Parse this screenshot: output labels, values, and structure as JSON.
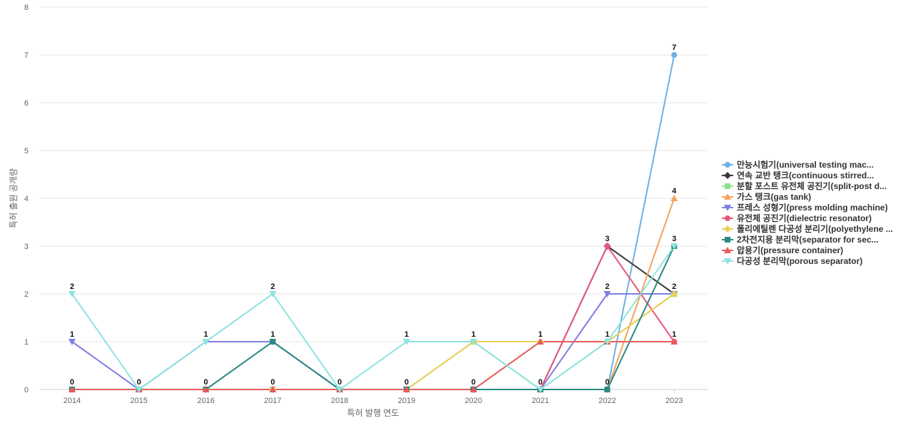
{
  "chart_data": {
    "type": "line",
    "xlabel": "특허 발행 연도",
    "ylabel": "특허 출원 공개량",
    "ylim": [
      0,
      8
    ],
    "yticks": [
      0,
      1,
      2,
      3,
      4,
      5,
      6,
      7,
      8
    ],
    "categories": [
      "2014",
      "2015",
      "2016",
      "2017",
      "2018",
      "2019",
      "2020",
      "2021",
      "2022",
      "2023"
    ],
    "grid": true,
    "legend_position": "right",
    "series": [
      {
        "name": "만능시험기(universal testing mac...",
        "color": "#6fb0e4",
        "marker": "circle",
        "values": [
          0,
          0,
          0,
          0,
          0,
          0,
          0,
          0,
          0,
          7
        ]
      },
      {
        "name": "연속 교반 탱크(continuous stirred...",
        "color": "#3a3a3a",
        "marker": "diamond",
        "values": [
          0,
          0,
          0,
          0,
          0,
          0,
          0,
          0,
          3,
          2
        ]
      },
      {
        "name": "분할 포스트 유전체 공진기(split-post d...",
        "color": "#8fe08a",
        "marker": "square",
        "values": [
          0,
          0,
          0,
          0,
          0,
          0,
          1,
          0,
          1,
          2
        ]
      },
      {
        "name": "가스 탱크(gas tank)",
        "color": "#f4a25e",
        "marker": "triangle-up",
        "values": [
          0,
          0,
          0,
          0,
          0,
          0,
          0,
          0,
          0,
          4
        ]
      },
      {
        "name": "프레스 성형기(press molding machine)",
        "color": "#7f7fe0",
        "marker": "triangle-down",
        "values": [
          1,
          0,
          1,
          1,
          0,
          0,
          0,
          0,
          2,
          2
        ]
      },
      {
        "name": "유전체 공진기(dielectric resonator)",
        "color": "#e8577a",
        "marker": "circle",
        "values": [
          0,
          0,
          0,
          0,
          0,
          0,
          0,
          0,
          3,
          1
        ]
      },
      {
        "name": "폴리에틸렌 다공성 분리기(polyethylene ...",
        "color": "#ead05a",
        "marker": "diamond",
        "values": [
          0,
          0,
          0,
          0,
          0,
          0,
          1,
          1,
          1,
          2
        ]
      },
      {
        "name": "2차전지용 분리막(separator for sec...",
        "color": "#2a8a82",
        "marker": "square",
        "values": [
          0,
          0,
          0,
          1,
          0,
          0,
          0,
          0,
          0,
          3
        ]
      },
      {
        "name": "압용기(pressure container)",
        "color": "#e85c5c",
        "marker": "triangle-up",
        "values": [
          0,
          0,
          0,
          0,
          0,
          0,
          0,
          1,
          1,
          1
        ]
      },
      {
        "name": "다공성 분리막(porous separator)",
        "color": "#8ee4e0",
        "marker": "triangle-down",
        "values": [
          2,
          0,
          1,
          2,
          0,
          1,
          1,
          0,
          1,
          3
        ]
      }
    ],
    "data_labels": [
      {
        "category": "2014",
        "series_index": 9,
        "text": "2"
      },
      {
        "category": "2014",
        "series_index": 4,
        "text": "1"
      },
      {
        "category": "2014",
        "series_index": 0,
        "text": "0"
      },
      {
        "category": "2015",
        "series_index": 0,
        "text": "0"
      },
      {
        "category": "2016",
        "series_index": 9,
        "text": "1"
      },
      {
        "category": "2016",
        "series_index": 0,
        "text": "0"
      },
      {
        "category": "2017",
        "series_index": 9,
        "text": "2"
      },
      {
        "category": "2017",
        "series_index": 7,
        "text": "1"
      },
      {
        "category": "2017",
        "series_index": 0,
        "text": "0"
      },
      {
        "category": "2018",
        "series_index": 0,
        "text": "0"
      },
      {
        "category": "2019",
        "series_index": 9,
        "text": "1"
      },
      {
        "category": "2019",
        "series_index": 0,
        "text": "0"
      },
      {
        "category": "2020",
        "series_index": 9,
        "text": "1"
      },
      {
        "category": "2020",
        "series_index": 0,
        "text": "0"
      },
      {
        "category": "2021",
        "series_index": 8,
        "text": "1"
      },
      {
        "category": "2021",
        "series_index": 0,
        "text": "0"
      },
      {
        "category": "2022",
        "series_index": 1,
        "text": "3"
      },
      {
        "category": "2022",
        "series_index": 4,
        "text": "2"
      },
      {
        "category": "2022",
        "series_index": 9,
        "text": "1"
      },
      {
        "category": "2022",
        "series_index": 0,
        "text": "0"
      },
      {
        "category": "2023",
        "series_index": 0,
        "text": "7"
      },
      {
        "category": "2023",
        "series_index": 3,
        "text": "4"
      },
      {
        "category": "2023",
        "series_index": 9,
        "text": "3"
      },
      {
        "category": "2023",
        "series_index": 4,
        "text": "2"
      },
      {
        "category": "2023",
        "series_index": 8,
        "text": "1"
      }
    ]
  }
}
